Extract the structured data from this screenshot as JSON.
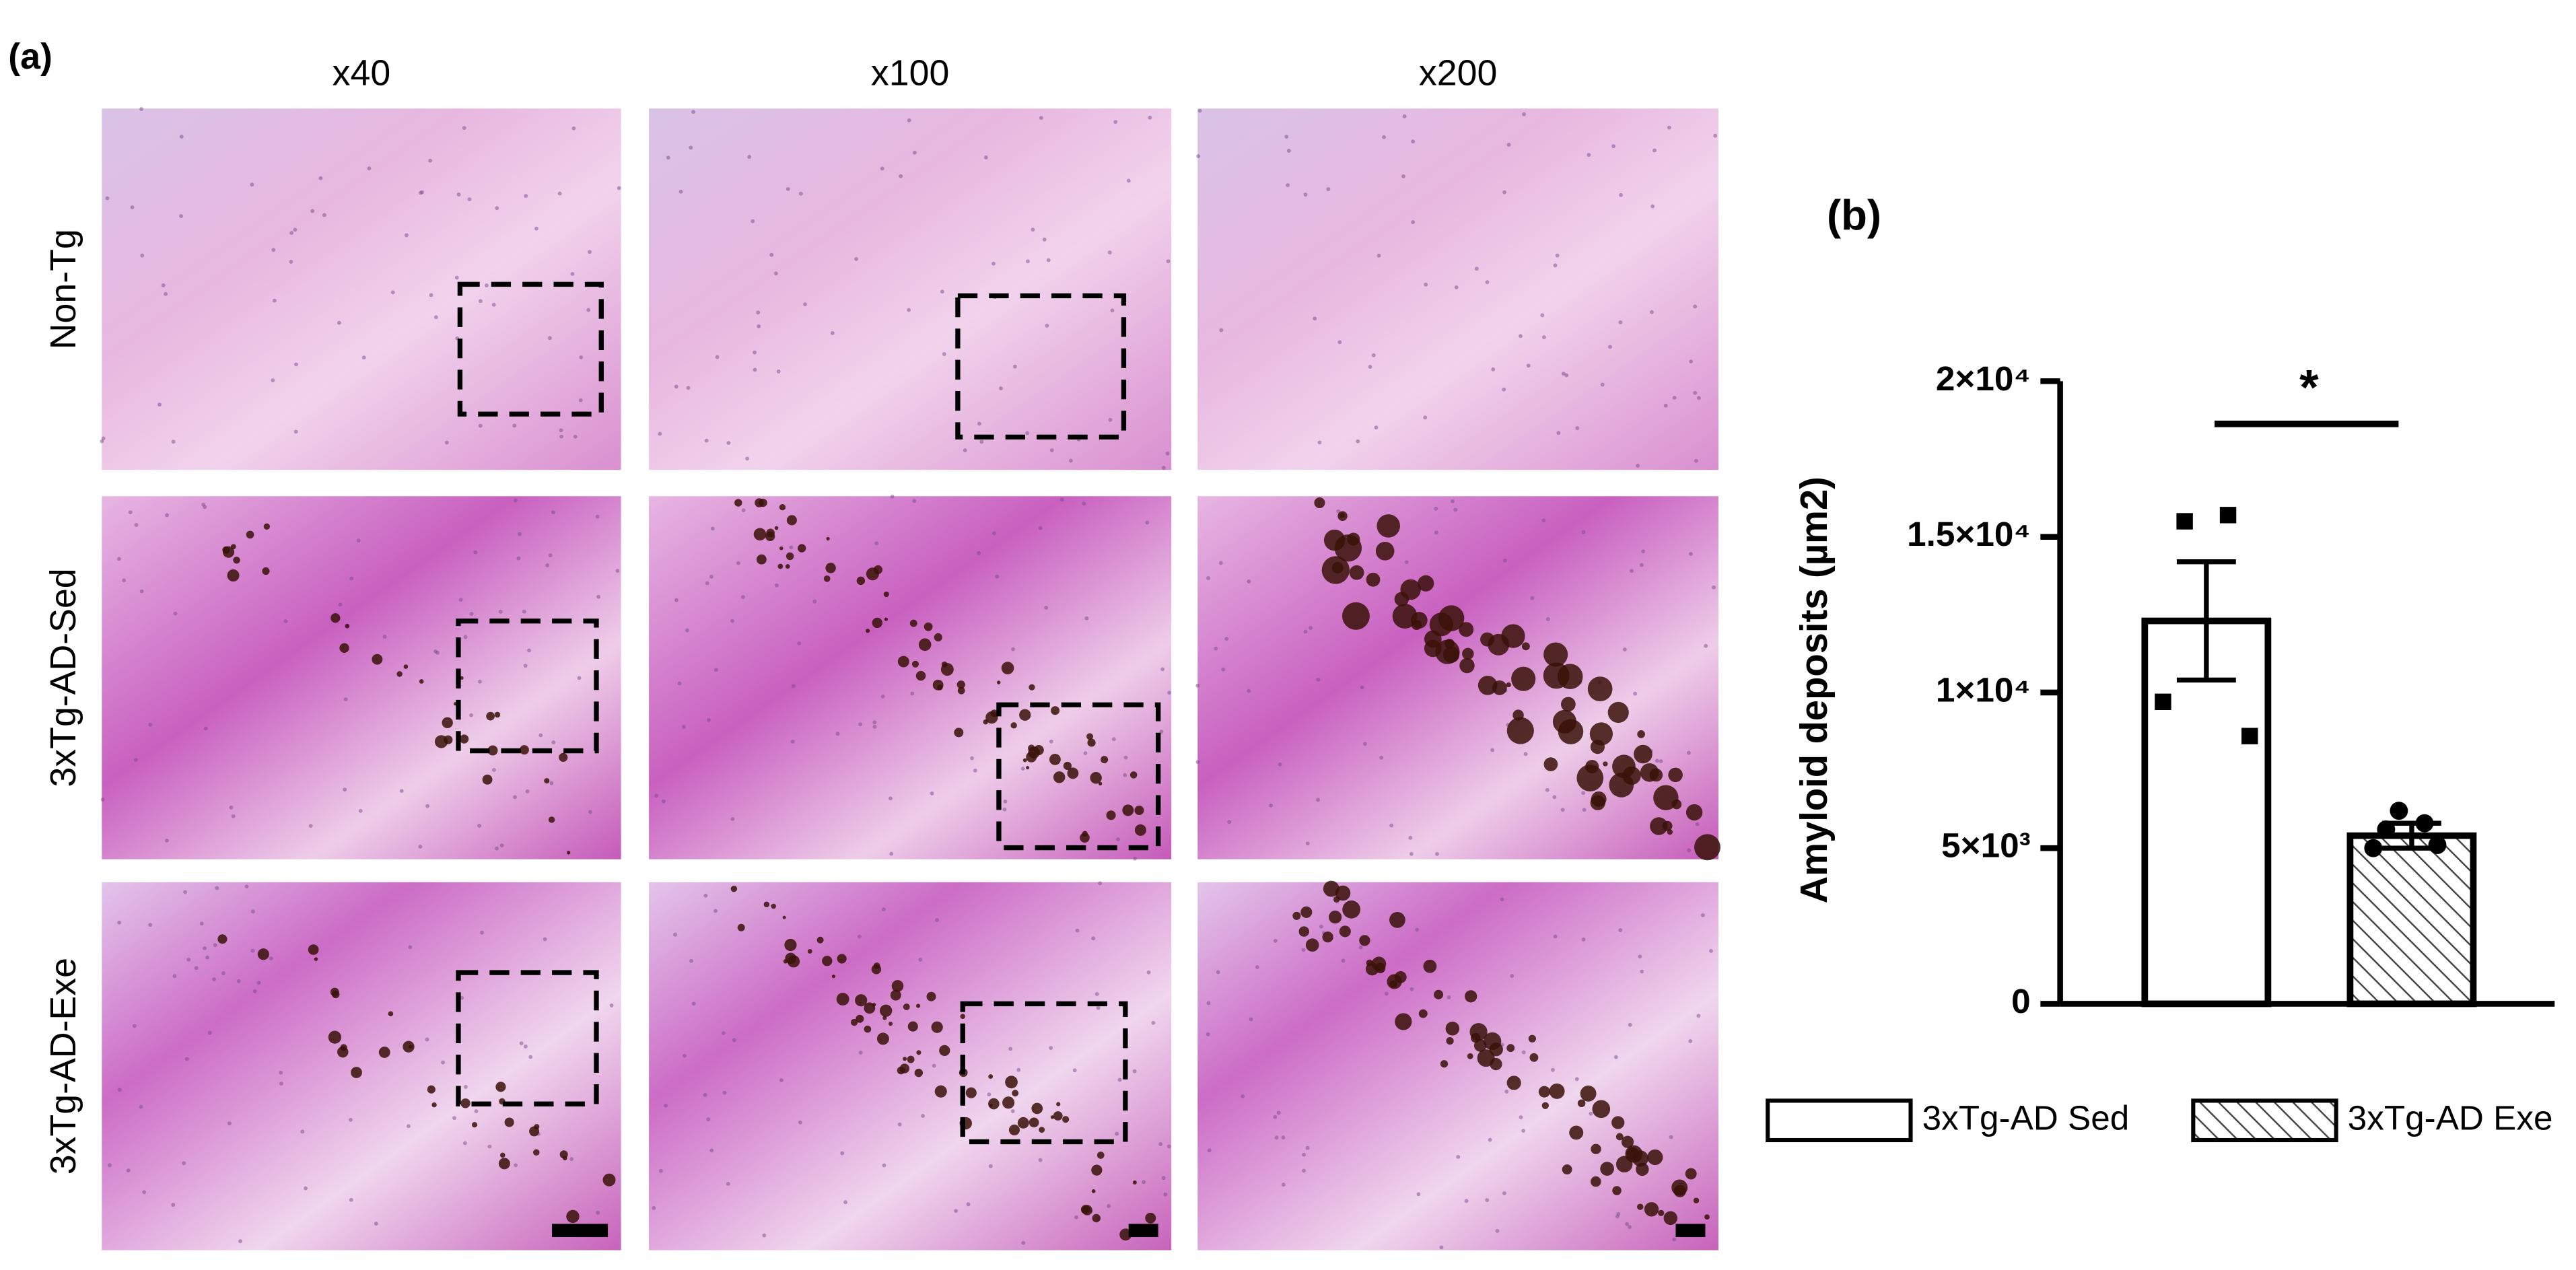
{
  "figure": {
    "panel_a": "(a)",
    "panel_b": "(b)",
    "columns": [
      "x40",
      "x100",
      "x200"
    ],
    "rows": [
      "Non-Tg",
      "3xTg-AD-Sed",
      "3xTg-AD-Exe"
    ]
  },
  "chart_data": {
    "type": "bar",
    "y_label": "Amyloid deposits (µm2)",
    "categories": [
      "3xTg-AD Sed",
      "3xTg-AD Exe"
    ],
    "values": [
      12300,
      5400
    ],
    "errors": [
      1900,
      400
    ],
    "points": [
      [
        15500,
        15700,
        9700,
        8600
      ],
      [
        6200,
        5800,
        5600,
        5100,
        5000
      ]
    ],
    "point_markers": [
      "square",
      "circle"
    ],
    "fills": [
      "none",
      "hatch"
    ],
    "color": "#000000",
    "significance_label": "*",
    "ylim": [
      0,
      20000
    ],
    "yticks": [
      0,
      {
        "value": 5000,
        "label": "5×10³"
      },
      {
        "value": 10000,
        "label": "1×10⁴"
      },
      {
        "value": 15000,
        "label": "1.5×10⁴"
      },
      {
        "value": 20000,
        "label": "2×10⁴"
      }
    ],
    "grid": false,
    "legend": "bottom"
  }
}
